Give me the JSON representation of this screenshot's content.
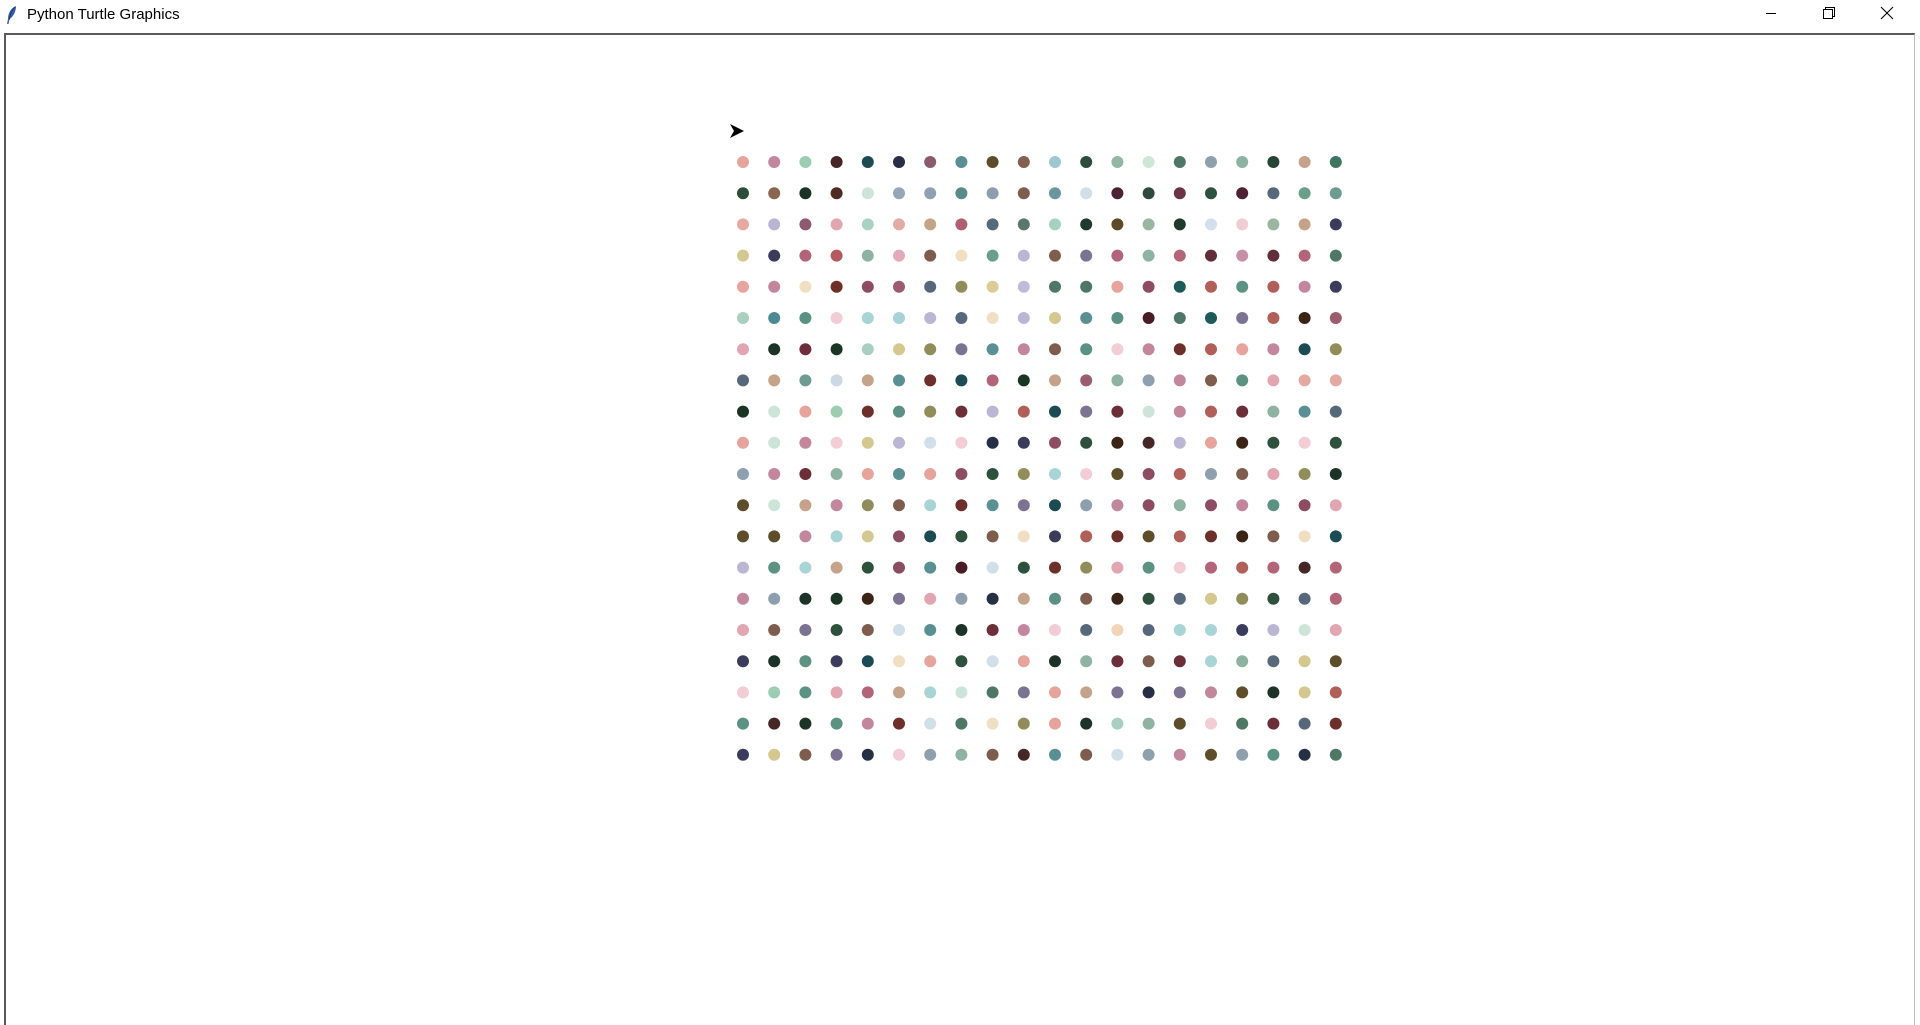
{
  "window": {
    "title": "Python Turtle Graphics",
    "icons": {
      "app": "feather-icon",
      "minimize": "minimize-icon",
      "maximize": "restore-icon",
      "close": "close-icon"
    }
  },
  "canvas": {
    "background": "#ffffff",
    "turtle_shape": "classic-arrow",
    "turtle_heading": "east",
    "turtle_color": "#000000",
    "dot_grid": {
      "rows": 20,
      "columns": 20,
      "colors": [
        [
          "#e6a49c",
          "#c2879d",
          "#9ccdb2",
          "#452726",
          "#1c4b53",
          "#272f45",
          "#8c5a6d",
          "#5c8f93",
          "#5e4d2b",
          "#846050",
          "#9dc8cf",
          "#2d4d3a",
          "#92b8a3",
          "#cce7d3",
          "#4e7766",
          "#8e9fad",
          "#8fb3a2",
          "#264535",
          "#c4a38a",
          "#3e7762"
        ],
        [
          "#2d4d3a",
          "#8a6650",
          "#1e3327",
          "#4e2a23",
          "#cde4d9",
          "#95a7b7",
          "#8fa0b2",
          "#588a87",
          "#8d9fae",
          "#7e5d4e",
          "#6b96a0",
          "#d1dfe8",
          "#4c2332",
          "#2d4a3d",
          "#6a3442",
          "#2d513d",
          "#4f2135",
          "#56687b",
          "#6c9e8c",
          "#6f9c92"
        ],
        [
          "#e6a9a2",
          "#bbb5d4",
          "#8e5a70",
          "#e2a6b3",
          "#a9d3c0",
          "#e4aaa5",
          "#c4a487",
          "#b05f70",
          "#56697b",
          "#5a786a",
          "#a6d2c2",
          "#1f3a2c",
          "#5d4a28",
          "#9ab6a0",
          "#1f3a2a",
          "#d3dfec",
          "#f0ccd4",
          "#9ab6a0",
          "#c4a38a",
          "#3b3c5c"
        ],
        [
          "#d4c78f",
          "#3b3c5c",
          "#b26478",
          "#b35a5e",
          "#8fb3a2",
          "#e3aabc",
          "#7e5d4e",
          "#f0e0c0",
          "#6a9e8f",
          "#bbb6d4",
          "#7e5d4e",
          "#7c7393",
          "#b26478",
          "#8fb3a2",
          "#b26478",
          "#612e3a",
          "#c791a5",
          "#612e3a",
          "#b26478",
          "#4e7766"
        ],
        [
          "#e6a49c",
          "#c2879d",
          "#f1dfc3",
          "#6c2f2a",
          "#8c4d62",
          "#9a5c6e",
          "#57687b",
          "#918d5b",
          "#dccd98",
          "#c0bbd8",
          "#4e7766",
          "#4e7766",
          "#e6a49c",
          "#8c4d62",
          "#1d5a5a",
          "#b06058",
          "#5b9282",
          "#b06058",
          "#c2879d",
          "#3b3c5c"
        ],
        [
          "#a9cfc0",
          "#4c8a92",
          "#5a9184",
          "#f2cdd6",
          "#a8d4d6",
          "#a9d1d8",
          "#bbb6d4",
          "#57687b",
          "#f1dfc3",
          "#bbb6d4",
          "#d4c78f",
          "#5a9094",
          "#5a9184",
          "#4a1c25",
          "#4e7766",
          "#1d5a5a",
          "#7c7393",
          "#b06058",
          "#3b2315",
          "#9a5c6e"
        ],
        [
          "#e2a6b3",
          "#1e3327",
          "#6c2f3a",
          "#1b3524",
          "#a9cfc0",
          "#d4c78f",
          "#918d5b",
          "#7c7393",
          "#5a9094",
          "#c2879d",
          "#7e5d4e",
          "#5a9184",
          "#f2cdd6",
          "#c2879d",
          "#6c2f2a",
          "#b06058",
          "#e6a49c",
          "#c2879d",
          "#1c4b53",
          "#918d5b"
        ],
        [
          "#57687b",
          "#c4a38a",
          "#6f9c92",
          "#cad9e4",
          "#c4a38a",
          "#5a9094",
          "#6c2f2a",
          "#1c4b53",
          "#b26478",
          "#1b3524",
          "#c4a38a",
          "#9a5c6e",
          "#8fb3a2",
          "#8e9fad",
          "#c2879d",
          "#7e5d4e",
          "#5b9282",
          "#e2a6b3",
          "#e6a9a2",
          "#e6a9a2"
        ],
        [
          "#1b3524",
          "#cde4d9",
          "#e6a49c",
          "#9ccdb2",
          "#6c2f2a",
          "#5a9184",
          "#918d5b",
          "#6c2f3a",
          "#bbb6d4",
          "#b06058",
          "#1c4b53",
          "#7c7393",
          "#6c2f3a",
          "#cde4d9",
          "#c2879d",
          "#b06058",
          "#6c2f3a",
          "#8fb3a2",
          "#5a9094",
          "#57687b"
        ],
        [
          "#e6a49c",
          "#cde4d9",
          "#c2879d",
          "#f2cdd6",
          "#d4c78f",
          "#bbb6d4",
          "#d1dfe8",
          "#f2cdd6",
          "#272f45",
          "#3b3c5c",
          "#8c4d62",
          "#2d513d",
          "#3b2315",
          "#452726",
          "#bbb6d4",
          "#e6a49c",
          "#3b2315",
          "#2d513d",
          "#f2cdd6",
          "#2d513d"
        ],
        [
          "#8e9fad",
          "#c2879d",
          "#6c2f3a",
          "#8fb3a2",
          "#e6a49c",
          "#5a9094",
          "#e6a49c",
          "#8c4d62",
          "#2d513d",
          "#918d5b",
          "#a8d4d6",
          "#f2cdd6",
          "#5e4d2b",
          "#8c4d62",
          "#b06058",
          "#8e9fad",
          "#7e5d4e",
          "#e2a6b3",
          "#918d5b",
          "#1e3327"
        ],
        [
          "#5e4d2b",
          "#cde4d9",
          "#c4a38a",
          "#c2879d",
          "#918d5b",
          "#7e5d4e",
          "#a8d4d6",
          "#6c2f2a",
          "#5a9094",
          "#7c7393",
          "#1c4b53",
          "#8e9fad",
          "#c2879d",
          "#8c4d62",
          "#8fb3a2",
          "#8c4d62",
          "#c2879d",
          "#5b9282",
          "#8c4d62",
          "#e2a6b3"
        ],
        [
          "#5e4d2b",
          "#5e4d2b",
          "#c2879d",
          "#a8d4d6",
          "#d4c78f",
          "#8c4d62",
          "#1c4b53",
          "#2d513d",
          "#7e5d4e",
          "#f1dfc3",
          "#3b3c5c",
          "#b06058",
          "#6c2f2a",
          "#5e4d2b",
          "#b06058",
          "#6c2f2a",
          "#3b2315",
          "#7e5d4e",
          "#f1dfc3",
          "#1c4b53"
        ],
        [
          "#bbb6d4",
          "#5b9282",
          "#a8d4d6",
          "#c4a38a",
          "#2d513d",
          "#8c4d62",
          "#5a9094",
          "#4a1c25",
          "#d1dfe8",
          "#2d513d",
          "#6c2f2a",
          "#918d5b",
          "#e2a6b3",
          "#5b9282",
          "#f2cdd6",
          "#b26478",
          "#b06058",
          "#b26478",
          "#452726",
          "#b26478"
        ],
        [
          "#c2879d",
          "#8e9fad",
          "#1e3327",
          "#1b3524",
          "#3b2315",
          "#7c7393",
          "#e2a6b3",
          "#8e9fad",
          "#272f45",
          "#c4a38a",
          "#5a9184",
          "#7e5d4e",
          "#3b2315",
          "#2d513d",
          "#57687b",
          "#d4c78f",
          "#918d5b",
          "#2d513d",
          "#57687b",
          "#b26478"
        ],
        [
          "#e2a6b3",
          "#7e5d4e",
          "#7c7393",
          "#2d513d",
          "#7e5d4e",
          "#d1dfe8",
          "#5a9094",
          "#1e3327",
          "#6c2f3a",
          "#c2879d",
          "#f2cdd6",
          "#57687b",
          "#f1d5b6",
          "#57687b",
          "#a8d4d6",
          "#a8d4d6",
          "#3b3c5c",
          "#bbb6d4",
          "#cde4d9",
          "#e2a6b3"
        ],
        [
          "#3b3c5c",
          "#1e3327",
          "#5b9282",
          "#3b3c5c",
          "#1c4b53",
          "#f1dfc3",
          "#e6a49c",
          "#2d513d",
          "#d1dfe8",
          "#e6a49c",
          "#1e3327",
          "#8fb3a2",
          "#6c2f3a",
          "#7e5d4e",
          "#6c2f3a",
          "#a8d4d6",
          "#8fb3a2",
          "#57687b",
          "#d4c78f",
          "#5e4d2b"
        ],
        [
          "#f2cdd6",
          "#9ccdb2",
          "#5b9282",
          "#e2a6b3",
          "#b26478",
          "#c4a38a",
          "#a8d4d6",
          "#cde4d9",
          "#4e7766",
          "#7c7393",
          "#e6a49c",
          "#c4a38a",
          "#7c7393",
          "#272f45",
          "#7c7393",
          "#c2879d",
          "#5e4d2b",
          "#1e3327",
          "#d4c78f",
          "#b06058"
        ],
        [
          "#5b9282",
          "#452726",
          "#1e3327",
          "#5b9282",
          "#c2879d",
          "#6c2f2a",
          "#d1dfe8",
          "#4e7766",
          "#f1dfc3",
          "#918d5b",
          "#e6a49c",
          "#1e3327",
          "#a9cfc0",
          "#8fb3a2",
          "#5e4d2b",
          "#f2cdd6",
          "#4e7766",
          "#6c2f3a",
          "#57687b",
          "#6c2f2a"
        ],
        [
          "#3b3c5c",
          "#d4c78f",
          "#7e5d4e",
          "#7c7393",
          "#272f45",
          "#f2cdd6",
          "#8e9fad",
          "#8fb3a2",
          "#7e5d4e",
          "#452726",
          "#5a9094",
          "#7e5d4e",
          "#d1dfe8",
          "#8e9fad",
          "#c2879d",
          "#5e4d2b",
          "#8e9fad",
          "#5b9282",
          "#272f45",
          "#4e7766"
        ]
      ]
    }
  }
}
